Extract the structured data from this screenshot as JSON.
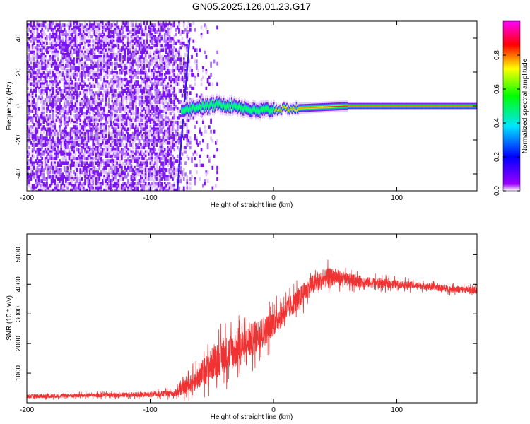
{
  "title": "GN05.2025.126.01.23.G17",
  "chart_data": [
    {
      "type": "heatmap",
      "xlabel": "Height of straight line (km)",
      "ylabel": "Frequency (Hz)",
      "xlim": [
        -200,
        165
      ],
      "ylim": [
        -50,
        50
      ],
      "xticks": [
        -200,
        -100,
        0,
        100
      ],
      "yticks": [
        -40,
        -20,
        0,
        20,
        40
      ],
      "colorbar": {
        "label": "Normalized spectral amplitude",
        "range": [
          0,
          1
        ],
        "ticks": [
          0.0,
          0.2,
          0.4,
          0.6,
          0.8
        ],
        "colormap": [
          "#ffffff",
          "#9b00ff",
          "#0000ff",
          "#00e5ff",
          "#00ff00",
          "#ffff00",
          "#ff0000",
          "#ff00ff"
        ]
      },
      "features": {
        "noise_region_km": [
          -200,
          -50
        ],
        "steep_track": {
          "from": [
            -78,
            -50
          ],
          "to": [
            -68,
            40
          ]
        },
        "signal_track": [
          {
            "x": -75,
            "f": -2
          },
          {
            "x": -45,
            "f": 1
          },
          {
            "x": -30,
            "f": 0
          },
          {
            "x": -15,
            "f": -3
          },
          {
            "x": 0,
            "f": -2
          },
          {
            "x": 30,
            "f": -1
          },
          {
            "x": 60,
            "f": 0
          },
          {
            "x": 165,
            "f": 0
          }
        ]
      }
    },
    {
      "type": "line",
      "xlabel": "Height of straight line (km)",
      "ylabel": "SNR (10 * v/v)",
      "xlim": [
        -200,
        165
      ],
      "ylim": [
        0,
        5700
      ],
      "xticks": [
        -200,
        -100,
        0,
        100
      ],
      "yticks": [
        1000,
        2000,
        3000,
        4000,
        5000
      ],
      "color": "#f03232",
      "series": [
        {
          "x": [
            -200,
            -150,
            -100,
            -80,
            -65,
            -55,
            -45,
            -35,
            -25,
            -15,
            -5,
            0,
            10,
            20,
            30,
            40,
            45,
            50,
            60,
            70,
            80,
            100,
            120,
            140,
            165
          ],
          "y": [
            220,
            250,
            280,
            320,
            700,
            1100,
            1500,
            1700,
            1900,
            2200,
            2500,
            2700,
            3100,
            3500,
            3950,
            4150,
            4250,
            4250,
            4150,
            4100,
            4050,
            4000,
            3950,
            3850,
            3800
          ],
          "noise_amplitude": [
            120,
            120,
            150,
            200,
            600,
            900,
            1100,
            1100,
            1100,
            1000,
            900,
            800,
            700,
            650,
            600,
            550,
            550,
            500,
            400,
            350,
            300,
            250,
            200,
            200,
            200
          ]
        }
      ]
    }
  ]
}
